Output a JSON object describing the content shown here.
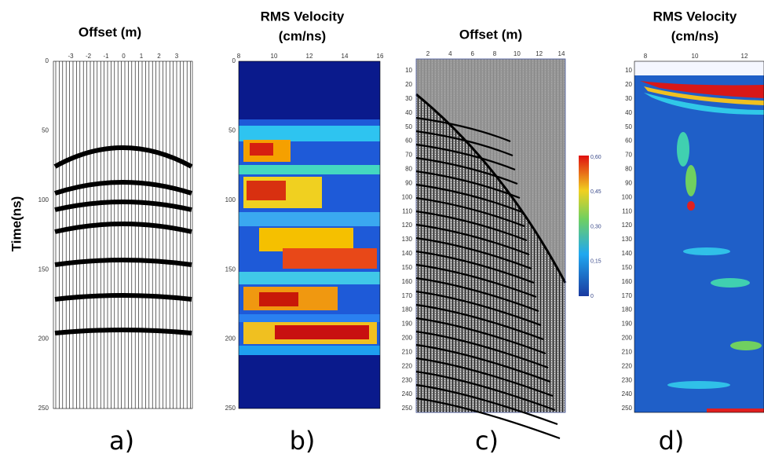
{
  "y_axis_label": "Time(ns)",
  "panels": [
    {
      "title": [
        "Offset (m)"
      ],
      "x_ticks": [
        "-3",
        "-2",
        "-1",
        "0",
        "1",
        "2",
        "3"
      ],
      "y_ticks": [
        "0",
        "50",
        "100",
        "150",
        "200",
        "250"
      ],
      "caption": "a)"
    },
    {
      "title": [
        "RMS Velocity",
        "(cm/ns)"
      ],
      "x_ticks": [
        "8",
        "10",
        "12",
        "14",
        "16"
      ],
      "y_ticks": [
        "0",
        "50",
        "100",
        "150",
        "200",
        "250"
      ],
      "caption": "b)"
    },
    {
      "title": [
        "Offset (m)"
      ],
      "x_ticks": [
        "2",
        "4",
        "6",
        "8",
        "10",
        "12",
        "14"
      ],
      "y_ticks": [
        "10",
        "20",
        "30",
        "40",
        "50",
        "60",
        "70",
        "80",
        "90",
        "100",
        "110",
        "120",
        "130",
        "140",
        "150",
        "160",
        "170",
        "180",
        "190",
        "200",
        "210",
        "220",
        "230",
        "240",
        "250"
      ],
      "caption": "c)"
    },
    {
      "title": [
        "RMS Velocity",
        "(cm/ns)"
      ],
      "x_ticks": [
        "8",
        "10",
        "12"
      ],
      "y_ticks": [
        "10",
        "20",
        "30",
        "40",
        "50",
        "60",
        "70",
        "80",
        "90",
        "100",
        "110",
        "120",
        "130",
        "140",
        "150",
        "160",
        "170",
        "180",
        "190",
        "200",
        "210",
        "220",
        "230",
        "240",
        "250"
      ],
      "caption": "d)"
    }
  ],
  "colorbar_ticks": [
    "0,60",
    "0,45",
    "0,30",
    "0,15",
    "0"
  ]
}
